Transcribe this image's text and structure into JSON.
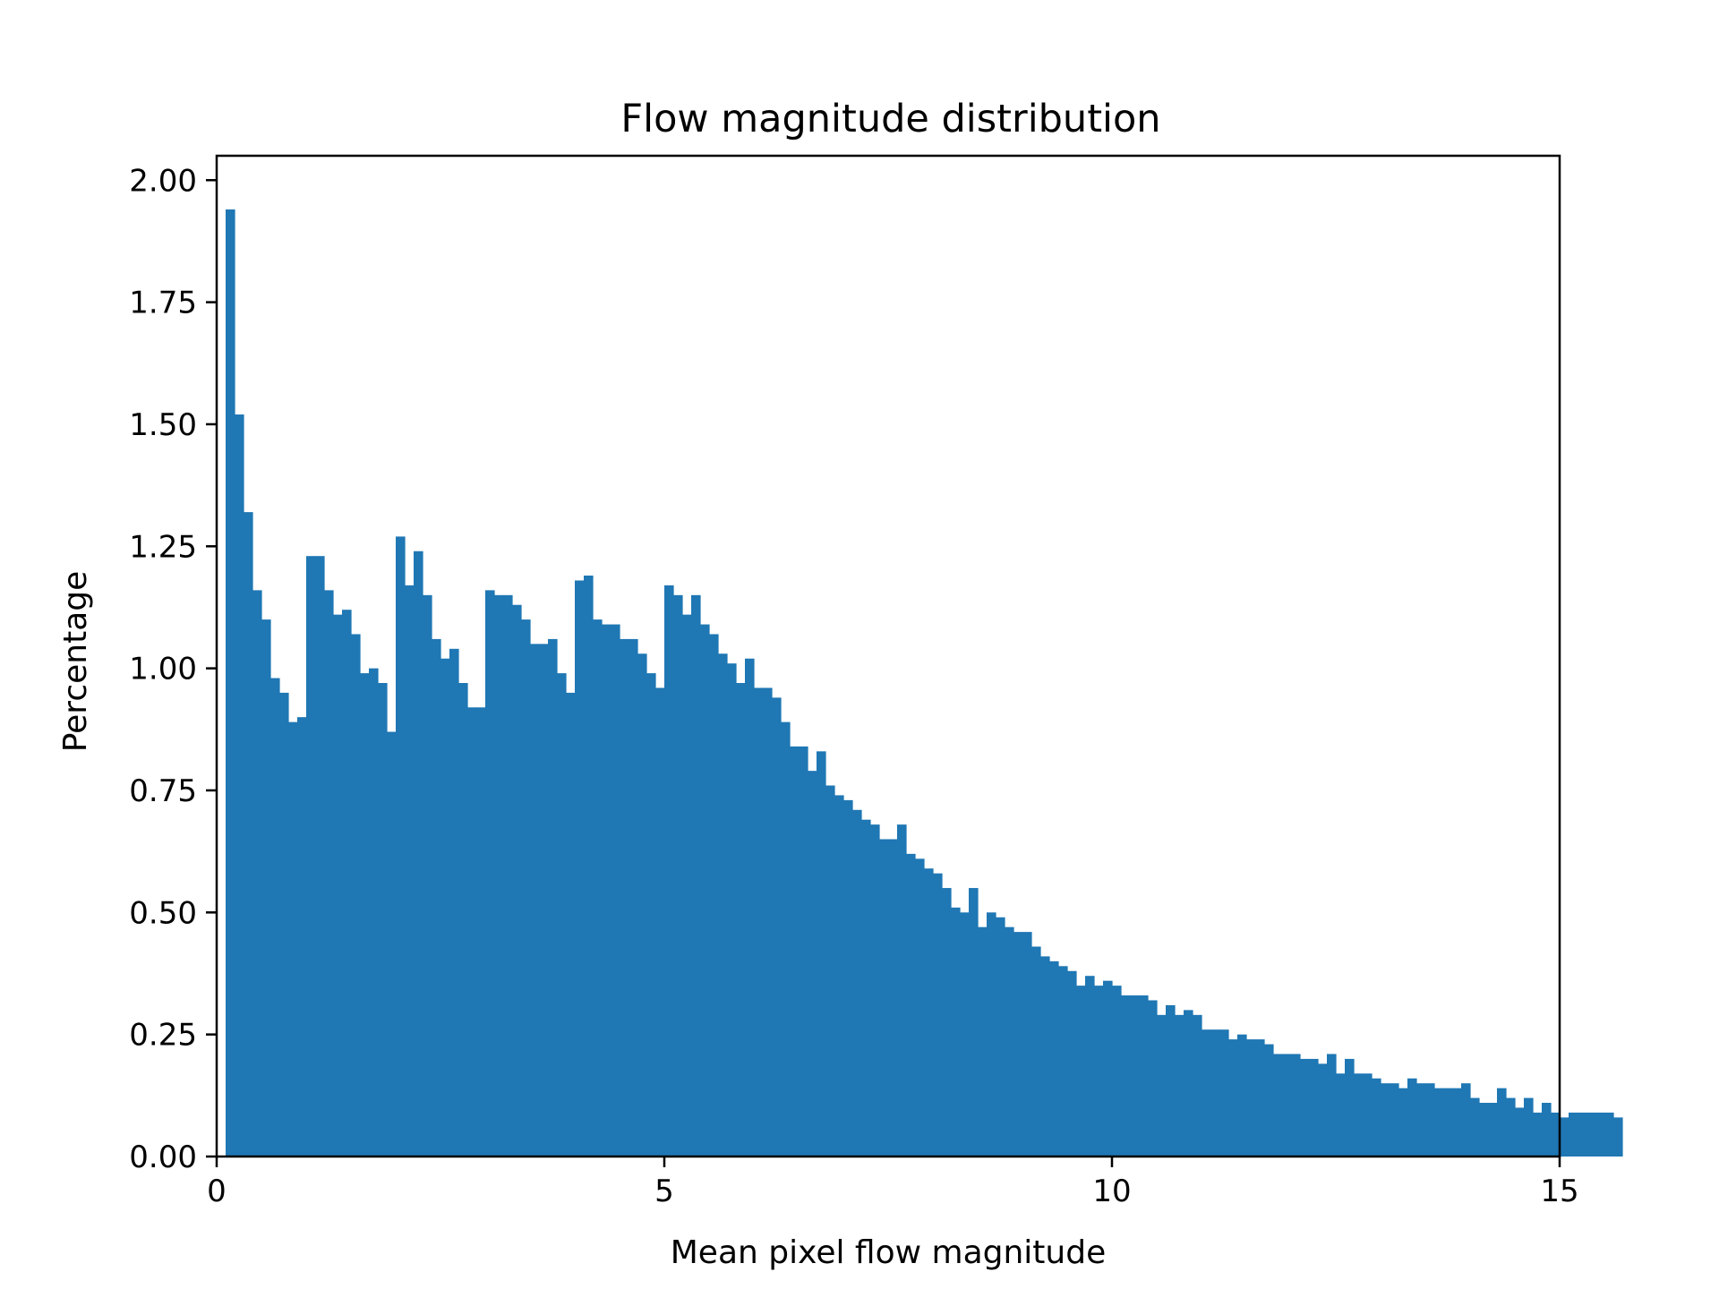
{
  "chart_data": {
    "type": "bar",
    "title": "Flow magnitude distribution",
    "xlabel": "Mean pixel flow magnitude",
    "ylabel": "Percentage",
    "xlim": [
      0,
      15
    ],
    "ylim": [
      0,
      2.05
    ],
    "xticks": [
      0,
      5,
      10,
      15
    ],
    "xtick_labels": [
      "0",
      "5",
      "10",
      "15"
    ],
    "yticks": [
      0,
      0.25,
      0.5,
      0.75,
      1.0,
      1.25,
      1.5,
      1.75,
      2.0
    ],
    "ytick_labels": [
      "0.00",
      "0.25",
      "0.50",
      "0.75",
      "1.00",
      "1.25",
      "1.50",
      "1.75",
      "2.00"
    ],
    "bin_start": 0,
    "bin_width": 0.1,
    "grid": false,
    "legend": "none",
    "bar_color": "#1f77b4",
    "values": [
      0.0,
      1.94,
      1.52,
      1.32,
      1.16,
      1.1,
      0.98,
      0.95,
      0.89,
      0.9,
      1.23,
      1.23,
      1.16,
      1.11,
      1.12,
      1.07,
      0.99,
      1.0,
      0.97,
      0.87,
      1.27,
      1.17,
      1.24,
      1.15,
      1.06,
      1.02,
      1.04,
      0.97,
      0.92,
      0.92,
      1.16,
      1.15,
      1.15,
      1.13,
      1.1,
      1.05,
      1.05,
      1.06,
      0.99,
      0.95,
      1.18,
      1.19,
      1.1,
      1.09,
      1.09,
      1.06,
      1.06,
      1.03,
      0.99,
      0.96,
      1.17,
      1.15,
      1.11,
      1.15,
      1.09,
      1.07,
      1.03,
      1.01,
      0.97,
      1.02,
      0.96,
      0.96,
      0.94,
      0.89,
      0.84,
      0.84,
      0.79,
      0.83,
      0.76,
      0.74,
      0.73,
      0.71,
      0.69,
      0.68,
      0.65,
      0.65,
      0.68,
      0.62,
      0.61,
      0.59,
      0.58,
      0.55,
      0.51,
      0.5,
      0.55,
      0.47,
      0.5,
      0.49,
      0.47,
      0.46,
      0.46,
      0.43,
      0.41,
      0.4,
      0.39,
      0.38,
      0.35,
      0.37,
      0.35,
      0.36,
      0.35,
      0.33,
      0.33,
      0.33,
      0.32,
      0.29,
      0.31,
      0.29,
      0.3,
      0.29,
      0.26,
      0.26,
      0.26,
      0.24,
      0.25,
      0.24,
      0.24,
      0.23,
      0.21,
      0.21,
      0.21,
      0.2,
      0.2,
      0.19,
      0.21,
      0.17,
      0.2,
      0.17,
      0.17,
      0.16,
      0.15,
      0.15,
      0.14,
      0.16,
      0.15,
      0.15,
      0.14,
      0.14,
      0.14,
      0.15,
      0.12,
      0.11,
      0.11,
      0.14,
      0.12,
      0.1,
      0.12,
      0.09,
      0.11,
      0.09,
      0.08,
      0.09,
      0.09,
      0.09,
      0.09,
      0.09,
      0.08
    ]
  }
}
